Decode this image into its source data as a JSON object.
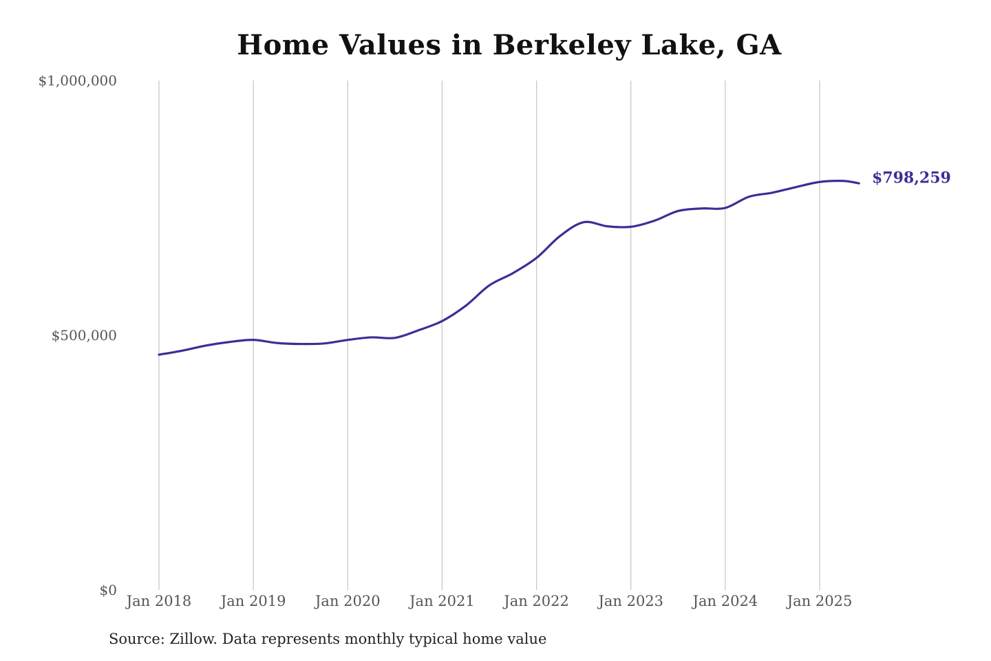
{
  "chart_data": {
    "type": "line",
    "title": "Home Values in Berkeley Lake, GA",
    "xlabel": "",
    "ylabel": "",
    "x_tick_labels": [
      "Jan 2018",
      "Jan 2019",
      "Jan 2020",
      "Jan 2021",
      "Jan 2022",
      "Jan 2023",
      "Jan 2024",
      "Jan 2025"
    ],
    "y_tick_labels": [
      "$0",
      "$500,000",
      "$1,000,000"
    ],
    "y_ticks": [
      0,
      500000,
      1000000
    ],
    "ylim": [
      0,
      1000000
    ],
    "grid": "vertical lines at year ticks",
    "line_color": "#3a2f96",
    "series": [
      {
        "points": [
          [
            "2018-01",
            462000
          ],
          [
            "2018-04",
            470000
          ],
          [
            "2018-07",
            480000
          ],
          [
            "2018-10",
            487000
          ],
          [
            "2019-01",
            491000
          ],
          [
            "2019-04",
            485000
          ],
          [
            "2019-07",
            483000
          ],
          [
            "2019-10",
            484000
          ],
          [
            "2020-01",
            491000
          ],
          [
            "2020-04",
            496000
          ],
          [
            "2020-07",
            495000
          ],
          [
            "2020-10",
            510000
          ],
          [
            "2021-01",
            528000
          ],
          [
            "2021-04",
            558000
          ],
          [
            "2021-07",
            598000
          ],
          [
            "2021-10",
            622000
          ],
          [
            "2022-01",
            652000
          ],
          [
            "2022-04",
            695000
          ],
          [
            "2022-07",
            722000
          ],
          [
            "2022-10",
            714000
          ],
          [
            "2023-01",
            713000
          ],
          [
            "2023-04",
            725000
          ],
          [
            "2023-07",
            744000
          ],
          [
            "2023-10",
            749000
          ],
          [
            "2024-01",
            750000
          ],
          [
            "2024-04",
            772000
          ],
          [
            "2024-07",
            780000
          ],
          [
            "2024-10",
            791000
          ],
          [
            "2025-01",
            801000
          ],
          [
            "2025-04",
            803000
          ],
          [
            "2025-06",
            798259
          ]
        ]
      }
    ],
    "end_label": "$798,259"
  },
  "source_note": "Source: Zillow. Data represents monthly typical home value"
}
